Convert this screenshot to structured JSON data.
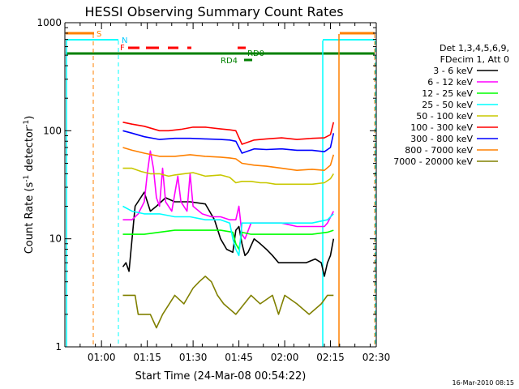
{
  "chart_data": {
    "type": "line",
    "title": "HESSI Observing Summary Count Rates",
    "xlabel": "Start Time (24-Mar-08 00:54:22)",
    "ylabel_main": "Count Rate (s",
    "ylabel_sup1": "-1",
    "ylabel_mid": " detector",
    "ylabel_sup2": "-1",
    "ylabel_end": ")",
    "y_scale": "log",
    "ylim": [
      1,
      1000
    ],
    "xlim_minutes": [
      -6,
      96
    ],
    "x_ticks": [
      {
        "t": 6,
        "label": "01:00"
      },
      {
        "t": 21,
        "label": "01:15"
      },
      {
        "t": 36,
        "label": "01:30"
      },
      {
        "t": 51,
        "label": "01:45"
      },
      {
        "t": 66,
        "label": "02:00"
      },
      {
        "t": 81,
        "label": "02:15"
      },
      {
        "t": 96,
        "label": "02:30"
      }
    ],
    "y_ticks": [
      {
        "v": 1,
        "label": "1"
      },
      {
        "v": 10,
        "label": "10"
      },
      {
        "v": 100,
        "label": "100"
      },
      {
        "v": 1000,
        "label": "1000"
      }
    ],
    "legend_header": [
      "Det 1,3,4,5,6,9,",
      "FDecim 1, Att 0"
    ],
    "legend_position": "right",
    "series": [
      {
        "name": "3 - 6 keV",
        "color": "#000000",
        "points": [
          [
            13,
            5.5
          ],
          [
            14,
            6
          ],
          [
            15,
            5
          ],
          [
            17,
            20
          ],
          [
            20,
            27
          ],
          [
            22,
            18
          ],
          [
            24,
            20
          ],
          [
            27,
            24
          ],
          [
            30,
            22
          ],
          [
            35,
            22
          ],
          [
            40,
            21
          ],
          [
            43,
            15
          ],
          [
            45,
            10
          ],
          [
            47,
            8
          ],
          [
            49,
            7.5
          ],
          [
            50,
            12
          ],
          [
            51,
            13
          ],
          [
            52,
            9
          ],
          [
            53,
            7
          ],
          [
            54,
            7.5
          ],
          [
            56,
            10
          ],
          [
            58,
            9
          ],
          [
            60,
            8
          ],
          [
            62,
            7
          ],
          [
            64,
            6
          ],
          [
            66,
            6
          ],
          [
            68,
            6
          ],
          [
            70,
            6
          ],
          [
            73,
            6
          ],
          [
            76,
            6.5
          ],
          [
            78,
            6
          ],
          [
            79,
            4.5
          ],
          [
            80,
            6
          ],
          [
            81,
            7
          ],
          [
            82,
            10
          ]
        ]
      },
      {
        "name": "6 - 12 keV",
        "color": "#ff00ff",
        "points": [
          [
            13,
            15
          ],
          [
            16,
            15
          ],
          [
            18,
            17
          ],
          [
            20,
            22
          ],
          [
            21,
            40
          ],
          [
            22,
            65
          ],
          [
            23,
            45
          ],
          [
            24,
            24
          ],
          [
            25,
            20
          ],
          [
            26,
            45
          ],
          [
            27,
            22
          ],
          [
            29,
            18
          ],
          [
            31,
            38
          ],
          [
            32,
            22
          ],
          [
            34,
            18
          ],
          [
            35,
            40
          ],
          [
            36,
            20
          ],
          [
            39,
            17
          ],
          [
            42,
            16
          ],
          [
            45,
            16
          ],
          [
            48,
            15
          ],
          [
            50,
            15
          ],
          [
            51,
            20
          ],
          [
            52,
            11
          ],
          [
            53,
            10
          ],
          [
            55,
            14
          ],
          [
            60,
            14
          ],
          [
            65,
            14
          ],
          [
            70,
            13
          ],
          [
            75,
            13
          ],
          [
            79,
            13
          ],
          [
            80,
            14
          ],
          [
            82,
            18
          ]
        ]
      },
      {
        "name": "12 - 25 keV",
        "color": "#00ff00",
        "points": [
          [
            13,
            11
          ],
          [
            20,
            11
          ],
          [
            25,
            11.5
          ],
          [
            30,
            12
          ],
          [
            35,
            12
          ],
          [
            40,
            12
          ],
          [
            45,
            12
          ],
          [
            49,
            11.5
          ],
          [
            50,
            9
          ],
          [
            51,
            8
          ],
          [
            52,
            11.5
          ],
          [
            55,
            11
          ],
          [
            60,
            11
          ],
          [
            65,
            11
          ],
          [
            70,
            11
          ],
          [
            75,
            11
          ],
          [
            80,
            11.5
          ],
          [
            82,
            12
          ]
        ]
      },
      {
        "name": "25 - 50 keV",
        "color": "#00ffff",
        "points": [
          [
            13,
            20
          ],
          [
            16,
            18
          ],
          [
            20,
            17
          ],
          [
            25,
            17
          ],
          [
            30,
            16
          ],
          [
            35,
            16
          ],
          [
            40,
            15
          ],
          [
            45,
            15
          ],
          [
            48,
            14
          ],
          [
            49,
            10
          ],
          [
            50,
            8
          ],
          [
            51,
            7
          ],
          [
            52,
            14
          ],
          [
            55,
            14
          ],
          [
            60,
            14
          ],
          [
            65,
            14
          ],
          [
            70,
            14
          ],
          [
            75,
            14
          ],
          [
            80,
            15
          ],
          [
            82,
            17
          ]
        ]
      },
      {
        "name": "50 - 100 keV",
        "color": "#c8c800",
        "points": [
          [
            13,
            45
          ],
          [
            16,
            45
          ],
          [
            19,
            42
          ],
          [
            22,
            40
          ],
          [
            25,
            40
          ],
          [
            28,
            38
          ],
          [
            30,
            39
          ],
          [
            33,
            40
          ],
          [
            36,
            41
          ],
          [
            40,
            38
          ],
          [
            45,
            39
          ],
          [
            48,
            37
          ],
          [
            50,
            33
          ],
          [
            52,
            34
          ],
          [
            55,
            34
          ],
          [
            58,
            33
          ],
          [
            60,
            33
          ],
          [
            63,
            32
          ],
          [
            66,
            32
          ],
          [
            70,
            32
          ],
          [
            75,
            32
          ],
          [
            79,
            33
          ],
          [
            81,
            36
          ],
          [
            82,
            40
          ]
        ]
      },
      {
        "name": "100 - 300 keV",
        "color": "#ff0000",
        "points": [
          [
            13,
            120
          ],
          [
            16,
            115
          ],
          [
            20,
            110
          ],
          [
            25,
            100
          ],
          [
            28,
            100
          ],
          [
            32,
            103
          ],
          [
            36,
            108
          ],
          [
            40,
            108
          ],
          [
            45,
            104
          ],
          [
            48,
            102
          ],
          [
            50,
            100
          ],
          [
            52,
            75
          ],
          [
            56,
            82
          ],
          [
            60,
            84
          ],
          [
            65,
            86
          ],
          [
            70,
            83
          ],
          [
            75,
            85
          ],
          [
            79,
            86
          ],
          [
            81,
            92
          ],
          [
            82,
            120
          ]
        ]
      },
      {
        "name": "300 - 800 keV",
        "color": "#0000ff",
        "points": [
          [
            13,
            100
          ],
          [
            16,
            95
          ],
          [
            20,
            88
          ],
          [
            25,
            83
          ],
          [
            30,
            85
          ],
          [
            35,
            85
          ],
          [
            40,
            84
          ],
          [
            45,
            83
          ],
          [
            48,
            82
          ],
          [
            50,
            80
          ],
          [
            52,
            62
          ],
          [
            56,
            68
          ],
          [
            60,
            67
          ],
          [
            65,
            68
          ],
          [
            70,
            66
          ],
          [
            75,
            66
          ],
          [
            79,
            64
          ],
          [
            81,
            70
          ],
          [
            82,
            95
          ]
        ]
      },
      {
        "name": "800 - 7000 keV",
        "color": "#ff8000",
        "points": [
          [
            13,
            70
          ],
          [
            16,
            66
          ],
          [
            20,
            62
          ],
          [
            25,
            58
          ],
          [
            30,
            58
          ],
          [
            35,
            60
          ],
          [
            40,
            58
          ],
          [
            45,
            57
          ],
          [
            48,
            56
          ],
          [
            50,
            55
          ],
          [
            52,
            50
          ],
          [
            56,
            48
          ],
          [
            60,
            47
          ],
          [
            65,
            45
          ],
          [
            70,
            43
          ],
          [
            75,
            44
          ],
          [
            79,
            43
          ],
          [
            81,
            48
          ],
          [
            82,
            60
          ]
        ]
      },
      {
        "name": "7000 - 20000 keV",
        "color": "#808000",
        "points": [
          [
            13,
            3
          ],
          [
            17,
            3
          ],
          [
            18,
            2
          ],
          [
            22,
            2
          ],
          [
            24,
            1.5
          ],
          [
            26,
            2
          ],
          [
            30,
            3
          ],
          [
            33,
            2.5
          ],
          [
            36,
            3.5
          ],
          [
            38,
            4
          ],
          [
            40,
            4.5
          ],
          [
            42,
            4
          ],
          [
            44,
            3
          ],
          [
            46,
            2.5
          ],
          [
            50,
            2
          ],
          [
            55,
            3
          ],
          [
            58,
            2.5
          ],
          [
            62,
            3
          ],
          [
            64,
            2
          ],
          [
            66,
            3
          ],
          [
            70,
            2.5
          ],
          [
            74,
            2
          ],
          [
            78,
            2.5
          ],
          [
            80,
            3
          ],
          [
            82,
            3
          ]
        ]
      }
    ],
    "attenuator_flags": [
      {
        "label": "S",
        "color": "#ff8000"
      },
      {
        "label": "N",
        "color": "#00ffff"
      },
      {
        "label": "F",
        "color": "#ff0000"
      },
      {
        "label": "RD0",
        "color": "#008000"
      },
      {
        "label": "RD4",
        "color": "#008000"
      }
    ],
    "footer_timestamp": "16-Mar-2010 08:15"
  }
}
